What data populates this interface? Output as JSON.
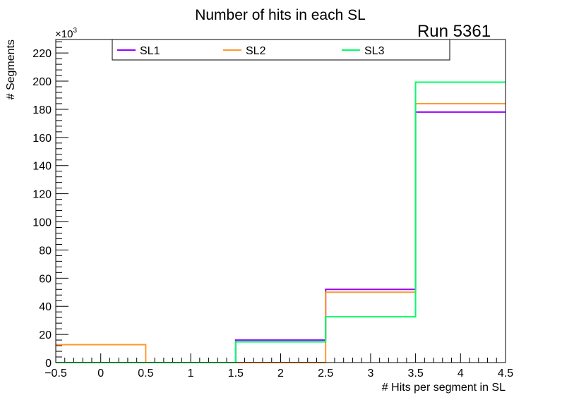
{
  "chart_data": {
    "type": "histogram-step",
    "title": "Number of hits in each SL",
    "annotation": "Run 5361",
    "xlabel": "# Hits per segment in SL",
    "ylabel": "# Segments",
    "y_multiplier_label": "×10",
    "y_multiplier_exp": "3",
    "xlim": [
      -0.5,
      4.5
    ],
    "ylim": [
      0,
      229.6
    ],
    "bin_edges": [
      -0.5,
      0.5,
      1.5,
      2.5,
      3.5,
      4.5
    ],
    "x_ticks": [
      "−0.5",
      "0",
      "0.5",
      "1",
      "1.5",
      "2",
      "2.5",
      "3",
      "3.5",
      "4",
      "4.5"
    ],
    "x_tick_values": [
      -0.5,
      0,
      0.5,
      1,
      1.5,
      2,
      2.5,
      3,
      3.5,
      4,
      4.5
    ],
    "y_ticks": [
      "0",
      "20",
      "40",
      "60",
      "80",
      "100",
      "120",
      "140",
      "160",
      "180",
      "200",
      "220"
    ],
    "y_tick_values": [
      0,
      20,
      40,
      60,
      80,
      100,
      120,
      140,
      160,
      180,
      200,
      220
    ],
    "legend_position": "top",
    "series": [
      {
        "name": "SL1",
        "color": "#9900ff",
        "values": [
          0,
          0,
          16,
          52,
          178
        ]
      },
      {
        "name": "SL2",
        "color": "#ff9933",
        "values": [
          12.7,
          0,
          0,
          50,
          184
        ]
      },
      {
        "name": "SL3",
        "color": "#00ff66",
        "values": [
          0,
          0,
          14.7,
          32.6,
          199.3
        ]
      }
    ]
  }
}
